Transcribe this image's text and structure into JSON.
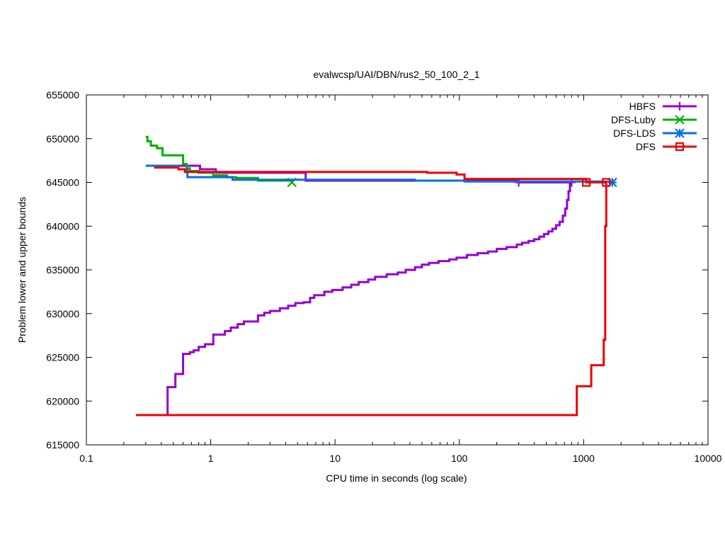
{
  "chart_data": {
    "type": "line",
    "title": "evalwcsp/UAI/DBN/rus2_50_100_2_1",
    "xlabel": "CPU time in seconds (log scale)",
    "ylabel": "Problem lower and upper bounds",
    "x_scale": "log",
    "xlim": [
      0.1,
      10000
    ],
    "ylim": [
      615000,
      655000
    ],
    "x_ticks": [
      0.1,
      1,
      10,
      100,
      1000,
      10000
    ],
    "x_tick_labels": [
      "0.1",
      "1",
      "10",
      "100",
      "1000",
      "10000"
    ],
    "y_ticks": [
      615000,
      620000,
      625000,
      630000,
      635000,
      640000,
      645000,
      650000,
      655000
    ],
    "y_tick_labels": [
      "615000",
      "620000",
      "625000",
      "630000",
      "635000",
      "640000",
      "645000",
      "650000",
      "655000"
    ],
    "grid": false,
    "legend_position": "top-right",
    "series": [
      {
        "name": "HBFS",
        "color": "#9400d3",
        "marker": "plus",
        "line_mode": "steps",
        "points": [
          [
            0.45,
            618400
          ],
          [
            0.45,
            621600
          ],
          [
            0.52,
            621600
          ],
          [
            0.52,
            623100
          ],
          [
            0.6,
            623100
          ],
          [
            0.6,
            625400
          ],
          [
            0.68,
            625400
          ],
          [
            0.68,
            625600
          ],
          [
            0.73,
            625600
          ],
          [
            0.73,
            625800
          ],
          [
            0.8,
            625800
          ],
          [
            0.8,
            626200
          ],
          [
            0.9,
            626200
          ],
          [
            0.9,
            626500
          ],
          [
            1.05,
            626500
          ],
          [
            1.05,
            627600
          ],
          [
            1.3,
            627600
          ],
          [
            1.3,
            628000
          ],
          [
            1.45,
            628000
          ],
          [
            1.45,
            628400
          ],
          [
            1.65,
            628400
          ],
          [
            1.65,
            628800
          ],
          [
            1.85,
            628800
          ],
          [
            1.85,
            629100
          ],
          [
            2.4,
            629100
          ],
          [
            2.4,
            629800
          ],
          [
            2.7,
            629800
          ],
          [
            2.7,
            630100
          ],
          [
            3.0,
            630100
          ],
          [
            3.0,
            630300
          ],
          [
            3.6,
            630300
          ],
          [
            3.6,
            630600
          ],
          [
            4.2,
            630600
          ],
          [
            4.2,
            630900
          ],
          [
            4.8,
            630900
          ],
          [
            4.8,
            631200
          ],
          [
            5.6,
            631200
          ],
          [
            5.6,
            631300
          ],
          [
            6.3,
            631300
          ],
          [
            6.3,
            631800
          ],
          [
            6.8,
            631800
          ],
          [
            6.8,
            632100
          ],
          [
            8.2,
            632100
          ],
          [
            8.2,
            632500
          ],
          [
            9.5,
            632500
          ],
          [
            9.5,
            632700
          ],
          [
            11.5,
            632700
          ],
          [
            11.5,
            633000
          ],
          [
            13.5,
            633000
          ],
          [
            13.5,
            633300
          ],
          [
            15.5,
            633300
          ],
          [
            15.5,
            633600
          ],
          [
            18.5,
            633600
          ],
          [
            18.5,
            633900
          ],
          [
            21,
            633900
          ],
          [
            21,
            634200
          ],
          [
            26,
            634200
          ],
          [
            26,
            634500
          ],
          [
            32,
            634500
          ],
          [
            32,
            634700
          ],
          [
            37,
            634700
          ],
          [
            37,
            635000
          ],
          [
            44,
            635000
          ],
          [
            44,
            635300
          ],
          [
            50,
            635300
          ],
          [
            50,
            635600
          ],
          [
            57,
            635600
          ],
          [
            57,
            635800
          ],
          [
            68,
            635800
          ],
          [
            68,
            636000
          ],
          [
            83,
            636000
          ],
          [
            83,
            636200
          ],
          [
            95,
            636200
          ],
          [
            95,
            636400
          ],
          [
            115,
            636400
          ],
          [
            115,
            636700
          ],
          [
            140,
            636700
          ],
          [
            140,
            636900
          ],
          [
            170,
            636900
          ],
          [
            170,
            637100
          ],
          [
            200,
            637100
          ],
          [
            200,
            637400
          ],
          [
            240,
            637400
          ],
          [
            240,
            637600
          ],
          [
            290,
            637600
          ],
          [
            290,
            637900
          ],
          [
            320,
            637900
          ],
          [
            320,
            638100
          ],
          [
            360,
            638100
          ],
          [
            360,
            638300
          ],
          [
            400,
            638300
          ],
          [
            400,
            638500
          ],
          [
            440,
            638500
          ],
          [
            440,
            638800
          ],
          [
            480,
            638800
          ],
          [
            480,
            639100
          ],
          [
            520,
            639100
          ],
          [
            520,
            639400
          ],
          [
            560,
            639400
          ],
          [
            560,
            639700
          ],
          [
            600,
            639700
          ],
          [
            600,
            640100
          ],
          [
            640,
            640100
          ],
          [
            640,
            640500
          ],
          [
            680,
            640500
          ],
          [
            680,
            641200
          ],
          [
            710,
            641200
          ],
          [
            710,
            642000
          ],
          [
            735,
            642000
          ],
          [
            735,
            643000
          ],
          [
            755,
            643000
          ],
          [
            755,
            644000
          ],
          [
            775,
            644000
          ],
          [
            775,
            644900
          ],
          [
            800,
            644900
          ]
        ],
        "upper": [
          [
            0.55,
            646900
          ],
          [
            0.82,
            646900
          ],
          [
            0.82,
            646500
          ],
          [
            1.1,
            646500
          ],
          [
            1.1,
            646100
          ],
          [
            5.8,
            646100
          ],
          [
            5.8,
            645200
          ],
          [
            300,
            645200
          ],
          [
            300,
            645000
          ],
          [
            800,
            645000
          ]
        ],
        "markers": [
          [
            300,
            645000
          ],
          [
            800,
            645000
          ]
        ]
      },
      {
        "name": "DFS-Luby",
        "color": "#00b000",
        "marker": "cross",
        "line_mode": "steps",
        "points": [
          [
            0.3,
            650200
          ],
          [
            0.31,
            650200
          ],
          [
            0.31,
            649700
          ],
          [
            0.33,
            649700
          ],
          [
            0.33,
            649200
          ],
          [
            0.37,
            649200
          ],
          [
            0.37,
            648900
          ],
          [
            0.41,
            648900
          ],
          [
            0.41,
            648100
          ],
          [
            0.6,
            648100
          ],
          [
            0.6,
            647100
          ],
          [
            0.64,
            647100
          ],
          [
            0.64,
            646600
          ],
          [
            0.68,
            646600
          ],
          [
            0.68,
            646300
          ],
          [
            0.8,
            646300
          ],
          [
            0.8,
            646100
          ],
          [
            1.05,
            646100
          ],
          [
            1.05,
            645800
          ],
          [
            1.35,
            645800
          ],
          [
            1.35,
            645600
          ],
          [
            1.6,
            645600
          ],
          [
            1.6,
            645500
          ],
          [
            2.4,
            645500
          ],
          [
            2.4,
            645200
          ],
          [
            4.5,
            645200
          ],
          [
            4.5,
            645000
          ]
        ],
        "markers": [
          [
            4.5,
            645000
          ]
        ]
      },
      {
        "name": "DFS-LDS",
        "color": "#0070e0",
        "marker": "star",
        "line_mode": "steps",
        "points": [
          [
            0.3,
            646900
          ],
          [
            0.55,
            646900
          ],
          [
            0.55,
            646500
          ],
          [
            0.65,
            646500
          ],
          [
            0.65,
            645600
          ],
          [
            1.5,
            645600
          ],
          [
            1.5,
            645300
          ],
          [
            44,
            645300
          ],
          [
            44,
            645200
          ],
          [
            110,
            645200
          ],
          [
            110,
            645100
          ],
          [
            1700,
            645100
          ],
          [
            1700,
            645000
          ]
        ],
        "markers": [
          [
            1700,
            645000
          ]
        ]
      },
      {
        "name": "DFS",
        "color": "#ee0000",
        "marker": "square",
        "line_mode": "steps",
        "points": [
          [
            0.35,
            646700
          ],
          [
            0.55,
            646700
          ],
          [
            0.55,
            646500
          ],
          [
            0.62,
            646500
          ],
          [
            0.62,
            646200
          ],
          [
            55,
            646200
          ],
          [
            55,
            646100
          ],
          [
            95,
            646100
          ],
          [
            95,
            645900
          ],
          [
            110,
            645900
          ],
          [
            110,
            645400
          ],
          [
            1050,
            645400
          ],
          [
            1050,
            645000
          ],
          [
            1530,
            645000
          ]
        ],
        "lower": [
          [
            0.25,
            618400
          ],
          [
            880,
            618400
          ],
          [
            880,
            621700
          ],
          [
            1150,
            621700
          ],
          [
            1150,
            624100
          ],
          [
            1450,
            624100
          ],
          [
            1450,
            627000
          ],
          [
            1490,
            627000
          ],
          [
            1490,
            640000
          ],
          [
            1520,
            640000
          ],
          [
            1520,
            645000
          ]
        ],
        "markers": [
          [
            1050,
            645000
          ],
          [
            1520,
            645000
          ]
        ]
      }
    ]
  }
}
